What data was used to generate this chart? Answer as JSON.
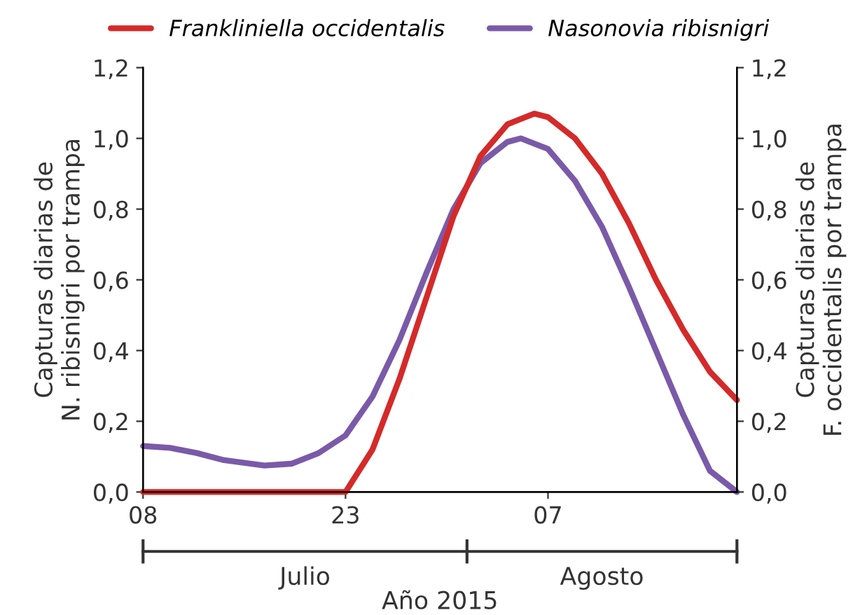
{
  "chart_data": {
    "type": "line",
    "xlabel": "Año 2015",
    "ylabel": "Capturas diarias de\nN. ribisnigri por trampa",
    "y2label": "Capturas diarias de\nF. occidentalis por trampa",
    "series": [
      {
        "name": "Frankliniella occidentalis",
        "color": "#d42a2a",
        "axis": "y2",
        "x": [
          "2015-07-08",
          "2015-07-23",
          "2015-07-25",
          "2015-07-27",
          "2015-07-29",
          "2015-07-31",
          "2015-08-02",
          "2015-08-04",
          "2015-08-06",
          "2015-08-07",
          "2015-08-09",
          "2015-08-11",
          "2015-08-13",
          "2015-08-15",
          "2015-08-17",
          "2015-08-19",
          "2015-08-21"
        ],
        "values": [
          0,
          0,
          0.12,
          0.32,
          0.55,
          0.78,
          0.95,
          1.04,
          1.07,
          1.06,
          1.0,
          0.9,
          0.76,
          0.6,
          0.46,
          0.34,
          0.26
        ]
      },
      {
        "name": "Nasonovia ribisnigri",
        "color": "#7a5aa8",
        "axis": "y",
        "x": [
          "2015-07-08",
          "2015-07-10",
          "2015-07-12",
          "2015-07-14",
          "2015-07-17",
          "2015-07-19",
          "2015-07-21",
          "2015-07-23",
          "2015-07-25",
          "2015-07-27",
          "2015-07-29",
          "2015-07-31",
          "2015-08-02",
          "2015-08-04",
          "2015-08-05",
          "2015-08-07",
          "2015-08-09",
          "2015-08-11",
          "2015-08-13",
          "2015-08-15",
          "2015-08-17",
          "2015-08-19",
          "2015-08-21"
        ],
        "values": [
          0.13,
          0.125,
          0.11,
          0.09,
          0.075,
          0.08,
          0.11,
          0.16,
          0.27,
          0.43,
          0.62,
          0.8,
          0.93,
          0.99,
          1.0,
          0.97,
          0.88,
          0.75,
          0.58,
          0.4,
          0.22,
          0.06,
          0.0
        ]
      }
    ],
    "xlim": [
      "2015-07-08",
      "2015-08-21"
    ],
    "xticks": [
      {
        "value": "2015-07-08",
        "label": "08"
      },
      {
        "value": "2015-07-23",
        "label": "23"
      },
      {
        "value": "2015-08-07",
        "label": "07"
      }
    ],
    "ylim": [
      0,
      1.2
    ],
    "yticks": [
      {
        "value": 0,
        "label": "0,0"
      },
      {
        "value": 0.2,
        "label": "0,2"
      },
      {
        "value": 0.4,
        "label": "0,4"
      },
      {
        "value": 0.6,
        "label": "0,6"
      },
      {
        "value": 0.8,
        "label": "0,8"
      },
      {
        "value": 1.0,
        "label": "1,0"
      },
      {
        "value": 1.2,
        "label": "1,2"
      }
    ],
    "y2lim": [
      0,
      1.2
    ],
    "y2ticks": [
      {
        "value": 0,
        "label": "0,0"
      },
      {
        "value": 0.2,
        "label": "0,2"
      },
      {
        "value": 0.4,
        "label": "0,4"
      },
      {
        "value": 0.6,
        "label": "0,6"
      },
      {
        "value": 0.8,
        "label": "0,8"
      },
      {
        "value": 1.0,
        "label": "1,0"
      },
      {
        "value": 1.2,
        "label": "1,2"
      }
    ],
    "annotations": [
      "Julio",
      "Agosto"
    ],
    "legend": "top",
    "grid": false
  }
}
